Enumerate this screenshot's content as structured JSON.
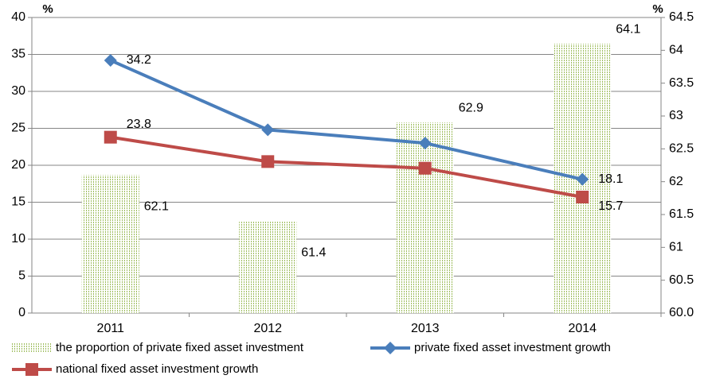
{
  "chart_data": {
    "type": "bar",
    "ylabel": "%",
    "y2label": "%",
    "categories": [
      "2011",
      "2012",
      "2013",
      "2014"
    ],
    "series": [
      {
        "name": "the proportion of private fixed asset investment",
        "type": "bar",
        "axis": "y2",
        "color": "#9bbb59",
        "values": [
          62.1,
          61.4,
          62.9,
          64.1
        ]
      },
      {
        "name": "private fixed asset investment growth",
        "type": "line",
        "marker": "diamond",
        "color": "#4a7ebb",
        "values": [
          34.2,
          24.8,
          23.0,
          18.1
        ],
        "value_labels": [
          "34.2",
          null,
          null,
          "18.1"
        ]
      },
      {
        "name": "national fixed asset investment growth",
        "type": "line",
        "marker": "square",
        "color": "#be4b48",
        "values": [
          23.8,
          20.5,
          19.6,
          15.7
        ],
        "value_labels": [
          "23.8",
          null,
          null,
          "15.7"
        ]
      }
    ],
    "ylim": [
      0,
      40
    ],
    "yticks": [
      0,
      5,
      10,
      15,
      20,
      25,
      30,
      35,
      40
    ],
    "y2lim": [
      60,
      64.5
    ],
    "y2ticks": [
      {
        "value": 60,
        "label": "60.0"
      },
      60.5,
      61,
      61.5,
      62,
      62.5,
      63,
      63.5,
      64,
      64.5
    ],
    "grid": true
  }
}
